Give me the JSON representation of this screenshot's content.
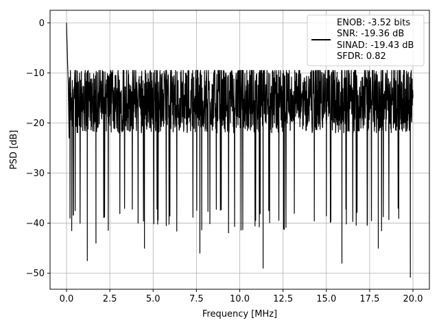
{
  "chart_data": {
    "type": "line",
    "xlabel": "Frequency [MHz]",
    "ylabel": "PSD [dB]",
    "xlim": [
      -0.95,
      20.95
    ],
    "ylim": [
      -53.2,
      2.5
    ],
    "xticks": [
      0.0,
      2.5,
      5.0,
      7.5,
      10.0,
      12.5,
      15.0,
      17.5,
      20.0
    ],
    "xtick_labels": [
      "0.0",
      "2.5",
      "5.0",
      "7.5",
      "10.0",
      "12.5",
      "15.0",
      "17.5",
      "20.0"
    ],
    "yticks": [
      0,
      -10,
      -20,
      -30,
      -40,
      -50
    ],
    "ytick_labels": [
      "0",
      "−10",
      "−20",
      "−30",
      "−40",
      "−50"
    ],
    "grid": true,
    "line_color": "#000000",
    "legend": {
      "location": "upper right",
      "entries": [
        "ENOB: -3.52 bits",
        "SNR: -19.36 dB",
        "SINAD: -19.43 dB",
        "SFDR: 0.82"
      ]
    },
    "series": [
      {
        "x": [
          0.0,
          0.02,
          0.04,
          0.06,
          0.08,
          0.1,
          0.15,
          0.2,
          0.25,
          0.3,
          0.5,
          1.0,
          1.2,
          1.5,
          1.7,
          2.5,
          4.5,
          6.5,
          7.7,
          8.5,
          9.5,
          10.5,
          11.35,
          12.0,
          13.0,
          14.0,
          15.0,
          15.9,
          17.0,
          18.0,
          19.0,
          19.85,
          20.0
        ],
        "y": [
          0.0,
          -3.0,
          -5.0,
          -8.0,
          -10.0,
          -12.0,
          -23.0,
          -39.0,
          -14.0,
          -41.5,
          -37.5,
          -16.0,
          -47.5,
          -18.0,
          -44.0,
          -18.0,
          -45.0,
          -18.0,
          -46.0,
          -19.0,
          -16.0,
          -19.0,
          -49.0,
          -20.0,
          -14.0,
          -16.0,
          -20.0,
          -48.0,
          -18.0,
          -45.0,
          -16.0,
          -50.8,
          -15.0
        ],
        "noise_floor_db": -20,
        "noise_upper_db": -9.5,
        "noise_lower_db": -35
      }
    ]
  }
}
